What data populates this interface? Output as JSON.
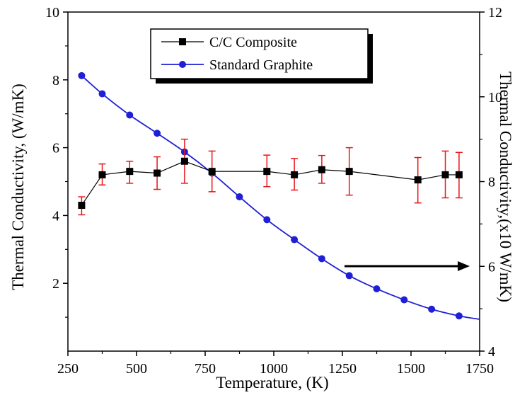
{
  "chart_data": {
    "type": "line",
    "xlabel": "Temperature, (K)",
    "ylabel_left": "Thermal Conductivity, (W/mK)",
    "ylabel_right": "Thermal Conductivity,(x10 W/mK)",
    "xlim": [
      250,
      1750
    ],
    "ylim_left": [
      0,
      10
    ],
    "ylim_right": [
      4,
      12
    ],
    "x_ticks": [
      250,
      500,
      750,
      1000,
      1250,
      1500,
      1750
    ],
    "x_tick_labels": [
      "250",
      "500",
      "750",
      "1000",
      "1250",
      "1500",
      "1750"
    ],
    "y_left_ticks": [
      2,
      4,
      6,
      8,
      10
    ],
    "y_left_tick_labels": [
      "2",
      "4",
      "6",
      "8",
      "10"
    ],
    "y_right_ticks": [
      4,
      6,
      8,
      10,
      12
    ],
    "y_right_tick_labels": [
      "4",
      "6",
      "8",
      "10",
      "12"
    ],
    "grid": false,
    "legend_position": "top-center",
    "annotation": "arrow pointing right toward the right axis",
    "series": [
      {
        "name": "C/C Composite",
        "axis": "left",
        "marker": "square",
        "color": "#000000",
        "errorbar_color": "#e8151a",
        "x": [
          300,
          375,
          475,
          575,
          675,
          775,
          975,
          1075,
          1175,
          1275,
          1525,
          1625,
          1675
        ],
        "y": [
          4.3,
          5.2,
          5.3,
          5.25,
          5.6,
          5.3,
          5.3,
          5.2,
          5.35,
          5.3,
          5.05,
          5.2,
          5.2
        ],
        "y_err_low": [
          0.28,
          0.3,
          0.35,
          0.48,
          0.65,
          0.6,
          0.45,
          0.45,
          0.4,
          0.7,
          0.68,
          0.68,
          0.68
        ],
        "y_err_high": [
          0.25,
          0.32,
          0.3,
          0.48,
          0.65,
          0.6,
          0.48,
          0.48,
          0.42,
          0.7,
          0.66,
          0.7,
          0.66
        ]
      },
      {
        "name": "Standard Graphite",
        "axis": "right",
        "marker": "circle",
        "line_style": "solid",
        "color": "#1f1fd6",
        "x": [
          300,
          375,
          475,
          575,
          675,
          775,
          875,
          975,
          1075,
          1175,
          1275,
          1375,
          1475,
          1575,
          1675
        ],
        "y": [
          10.5,
          10.07,
          9.57,
          9.14,
          8.7,
          8.2,
          7.64,
          7.1,
          6.63,
          6.18,
          5.78,
          5.47,
          5.21,
          4.99,
          4.83
        ],
        "curve_end": [
          1750,
          4.75
        ]
      }
    ]
  }
}
